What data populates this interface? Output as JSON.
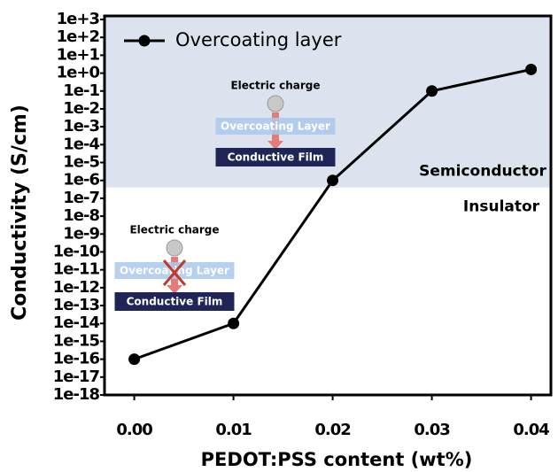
{
  "chart_data": {
    "type": "line",
    "xlabel": "PEDOT:PSS content (wt%)",
    "ylabel": "Conductivity (S/cm)",
    "x": [
      0,
      0.01,
      0.02,
      0.03,
      0.04
    ],
    "series": [
      {
        "name": "Overcoating layer",
        "color": "#000000",
        "values": [
          1e-16,
          1e-14,
          1e-06,
          0.1,
          1.6
        ]
      }
    ],
    "xlim": [
      -0.003,
      0.042
    ],
    "xticks": [
      {
        "value": 0,
        "label": "0.00"
      },
      0.01,
      0.02,
      0.03,
      0.04
    ],
    "ylim": [
      1e-18,
      1000
    ],
    "log_y": true,
    "yticks": [
      {
        "value": 1000,
        "label": "1e+3"
      },
      {
        "value": 100,
        "label": "1e+2"
      },
      {
        "value": 10,
        "label": "1e+1"
      },
      {
        "value": 1,
        "label": "1e+0"
      },
      {
        "value": 0.1,
        "label": "1e-1"
      },
      {
        "value": 0.01,
        "label": "1e-2"
      },
      {
        "value": 0.001,
        "label": "1e-3"
      },
      {
        "value": 0.0001,
        "label": "1e-4"
      },
      {
        "value": 1e-05,
        "label": "1e-5"
      },
      {
        "value": 1e-06,
        "label": "1e-6"
      },
      {
        "value": 1e-07,
        "label": "1e-7"
      },
      {
        "value": 1e-08,
        "label": "1e-8"
      },
      {
        "value": 1e-09,
        "label": "1e-9"
      },
      {
        "value": 1e-10,
        "label": "1e-10"
      },
      {
        "value": 1e-11,
        "label": "1e-11"
      },
      {
        "value": 1e-12,
        "label": "1e-12"
      },
      {
        "value": 1e-13,
        "label": "1e-13"
      },
      {
        "value": 1e-14,
        "label": "1e-14"
      },
      {
        "value": 1e-15,
        "label": "1e-15"
      },
      {
        "value": 1e-16,
        "label": "1e-16"
      },
      {
        "value": 1e-17,
        "label": "1e-17"
      },
      {
        "value": 1e-18,
        "label": "1e-18"
      }
    ],
    "legend": "upper left",
    "region_threshold": 4e-07,
    "region_color": "#dde3ee",
    "upper_region_label": "Semiconductor",
    "lower_region_label": "Insulator",
    "insets": [
      {
        "charge_label": "Electric charge",
        "layer_label": "Overcoating Layer",
        "film_label": "Conductive Film",
        "blocked": false
      },
      {
        "charge_label": "Electric charge",
        "layer_label": "Overcoating Layer",
        "film_label": "Conductive Film",
        "blocked": true
      }
    ]
  }
}
